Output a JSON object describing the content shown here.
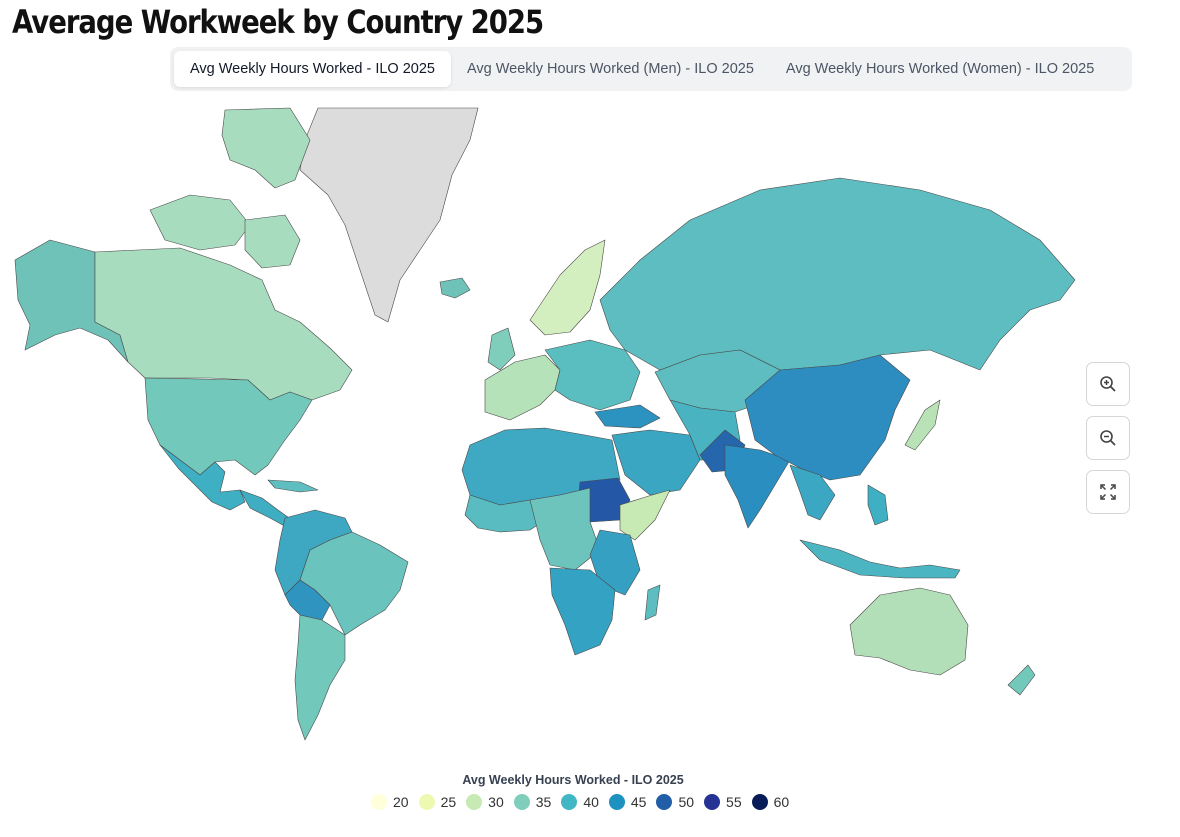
{
  "title": "Average Workweek by Country 2025",
  "tabs": [
    {
      "label": "Avg Weekly Hours Worked - ILO 2025",
      "active": true
    },
    {
      "label": "Avg Weekly Hours Worked (Men) - ILO 2025",
      "active": false
    },
    {
      "label": "Avg Weekly Hours Worked (Women) - ILO 2025",
      "active": false
    }
  ],
  "controls": {
    "zoom_in": "zoom-in-icon",
    "zoom_out": "zoom-out-icon",
    "fullscreen": "fullscreen-icon"
  },
  "legend": {
    "title": "Avg Weekly Hours Worked - ILO 2025",
    "bins": [
      {
        "label": "20",
        "color": "#ffffd9"
      },
      {
        "label": "25",
        "color": "#edf8b1"
      },
      {
        "label": "30",
        "color": "#c7e9b4"
      },
      {
        "label": "35",
        "color": "#7fcdbb"
      },
      {
        "label": "40",
        "color": "#41b6c4"
      },
      {
        "label": "45",
        "color": "#1d91c0"
      },
      {
        "label": "50",
        "color": "#225ea8"
      },
      {
        "label": "55",
        "color": "#253494"
      },
      {
        "label": "60",
        "color": "#081d58"
      }
    ],
    "no_data_color": "#dcdcdc"
  }
}
